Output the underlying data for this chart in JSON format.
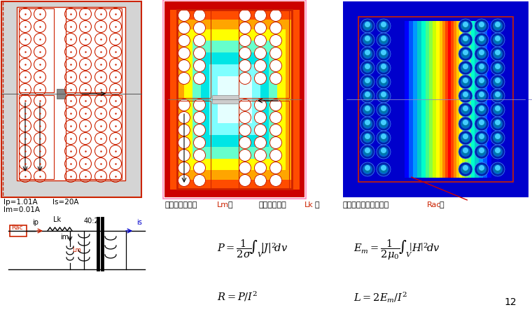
{
  "fig_width": 7.6,
  "fig_height": 4.66,
  "ip_text": "Ip=1.01A",
  "is_text": "Is=20A",
  "im_text": "Im=0.01A",
  "page_num": "12"
}
